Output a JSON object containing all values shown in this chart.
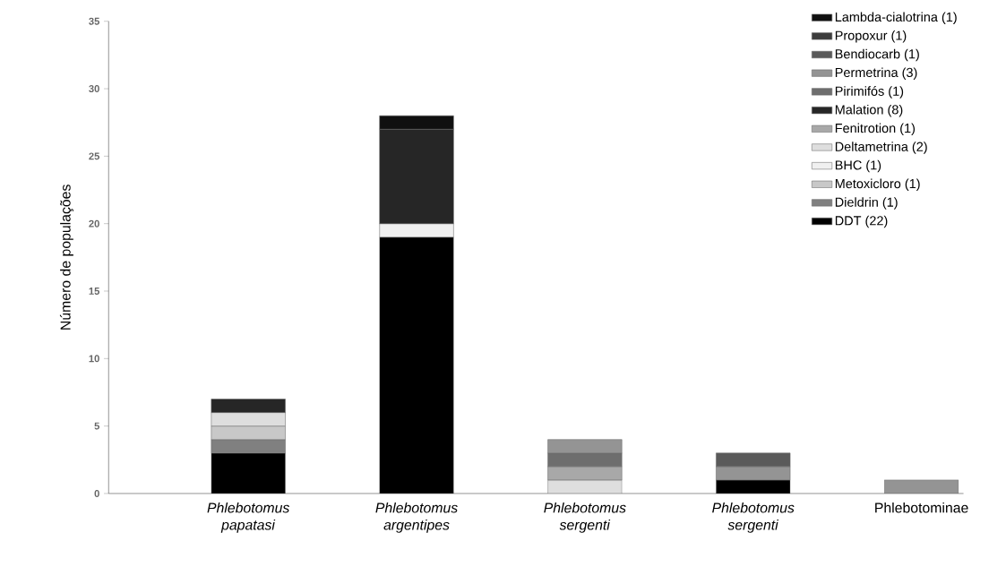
{
  "chart_data": {
    "type": "bar",
    "stacked": true,
    "ylabel": "Número de populações",
    "categories": [
      "*Phlebotomus papatasi*",
      "*Phlebotomus argentipes*",
      "*Phlebotomus sergenti*",
      "*Phlebotomus sergenti*",
      "Phlebotominae"
    ],
    "ylim": [
      0,
      35
    ],
    "yticks": [
      0,
      5,
      10,
      15,
      20,
      25,
      30,
      35
    ],
    "legend": "top right",
    "series": [
      {
        "name": "DDT (22)",
        "color": "#000000",
        "values": [
          3,
          19,
          null,
          1,
          null
        ]
      },
      {
        "name": "Dieldrin (1)",
        "color": "#808080",
        "values": [
          1,
          null,
          null,
          null,
          null
        ]
      },
      {
        "name": "Metoxicloro (1)",
        "color": "#c8c8c8",
        "values": [
          1,
          null,
          null,
          null,
          null
        ]
      },
      {
        "name": "BHC (1)",
        "color": "#f0f0f0",
        "values": [
          null,
          1,
          null,
          null,
          null
        ]
      },
      {
        "name": "Deltametrina (2)",
        "color": "#dedede",
        "values": [
          1,
          null,
          1,
          null,
          null
        ]
      },
      {
        "name": "Fenitrotion (1)",
        "color": "#a8a8a8",
        "values": [
          null,
          null,
          1,
          null,
          null
        ]
      },
      {
        "name": "Malation (8)",
        "color": "#262626",
        "values": [
          1,
          7,
          null,
          null,
          null
        ]
      },
      {
        "name": "Pirimifós (1)",
        "color": "#6e6e6e",
        "values": [
          null,
          null,
          1,
          null,
          null
        ]
      },
      {
        "name": "Permetrina (3)",
        "color": "#949494",
        "values": [
          null,
          null,
          1,
          1,
          1
        ]
      },
      {
        "name": "Bendiocarb (1)",
        "color": "#5a5a5a",
        "values": [
          null,
          null,
          null,
          1,
          null
        ]
      },
      {
        "name": "Propoxur (1)",
        "color": "#3c3c3c",
        "values": [
          null,
          null,
          null,
          null,
          null
        ]
      },
      {
        "name": "Lambda-cialotrina (1)",
        "color": "#101010",
        "values": [
          null,
          1,
          null,
          null,
          null
        ]
      }
    ]
  }
}
